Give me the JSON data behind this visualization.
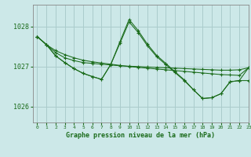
{
  "title": "Graphe pression niveau de la mer (hPa)",
  "background_color": "#cce8e8",
  "grid_color": "#aacccc",
  "line_color": "#1a6b1a",
  "xlim": [
    -0.5,
    23
  ],
  "ylim": [
    1025.6,
    1028.55
  ],
  "yticks": [
    1026,
    1027,
    1028
  ],
  "xticks": [
    0,
    1,
    2,
    3,
    4,
    5,
    6,
    7,
    8,
    9,
    10,
    11,
    12,
    13,
    14,
    15,
    16,
    17,
    18,
    19,
    20,
    21,
    22,
    23
  ],
  "series": [
    {
      "x": [
        0,
        1,
        2,
        3,
        4,
        5,
        6,
        7,
        8,
        9,
        10,
        11,
        12,
        13,
        14,
        15,
        16,
        17,
        18,
        19,
        20,
        21,
        22,
        23
      ],
      "y": [
        1027.75,
        1027.55,
        1027.4,
        1027.3,
        1027.22,
        1027.16,
        1027.12,
        1027.09,
        1027.06,
        1027.03,
        1027.0,
        1026.98,
        1026.96,
        1026.94,
        1026.92,
        1026.9,
        1026.88,
        1026.86,
        1026.84,
        1026.82,
        1026.8,
        1026.79,
        1026.78,
        1026.97
      ]
    },
    {
      "x": [
        0,
        1,
        2,
        3,
        4,
        5,
        6,
        7,
        8,
        9,
        10,
        11,
        12,
        13,
        14,
        15,
        16,
        17,
        18,
        19,
        20,
        21,
        22,
        23
      ],
      "y": [
        1027.75,
        1027.55,
        1027.35,
        1027.22,
        1027.15,
        1027.1,
        1027.08,
        1027.06,
        1027.04,
        1027.02,
        1027.01,
        1027.0,
        1026.99,
        1026.98,
        1026.97,
        1026.96,
        1026.95,
        1026.94,
        1026.93,
        1026.92,
        1026.91,
        1026.91,
        1026.92,
        1026.97
      ]
    },
    {
      "x": [
        0,
        1,
        2,
        3,
        4,
        5,
        6,
        7,
        8,
        9,
        10,
        11,
        12,
        13,
        14,
        15,
        16,
        17,
        18,
        19,
        20,
        21,
        22,
        23
      ],
      "y": [
        1027.75,
        1027.55,
        1027.27,
        1027.1,
        1026.95,
        1026.83,
        1026.75,
        1026.68,
        1027.05,
        1027.58,
        1028.12,
        1027.85,
        1027.52,
        1027.25,
        1027.05,
        1026.85,
        1026.65,
        1026.42,
        1026.2,
        1026.22,
        1026.32,
        1026.62,
        1026.65,
        1026.65
      ]
    },
    {
      "x": [
        0,
        1,
        2,
        3,
        4,
        5,
        6,
        7,
        8,
        9,
        10,
        11,
        12,
        13,
        14,
        15,
        16,
        17,
        18,
        19,
        20,
        21,
        22,
        23
      ],
      "y": [
        1027.75,
        1027.55,
        1027.27,
        1027.1,
        1026.95,
        1026.83,
        1026.75,
        1026.68,
        1027.05,
        1027.62,
        1028.18,
        1027.9,
        1027.56,
        1027.28,
        1027.08,
        1026.87,
        1026.67,
        1026.42,
        1026.2,
        1026.22,
        1026.32,
        1026.62,
        1026.65,
        1026.97
      ]
    }
  ]
}
